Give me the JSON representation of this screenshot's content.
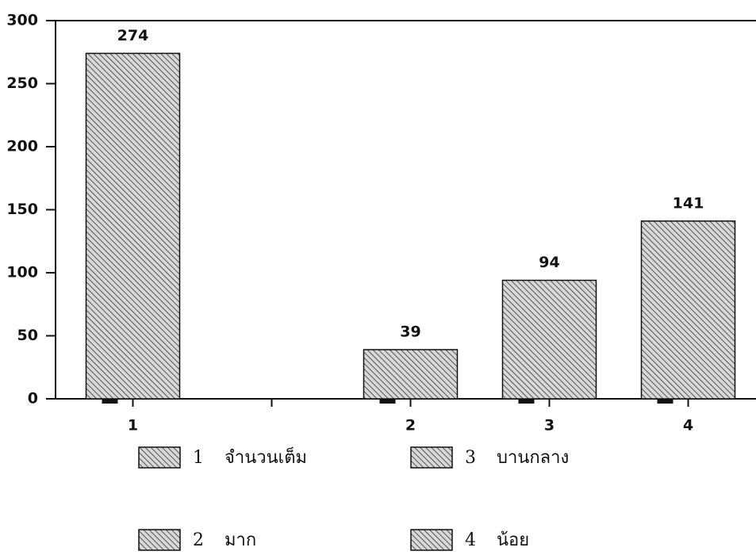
{
  "chart_data": {
    "type": "bar",
    "categories": [
      "1",
      null,
      "2",
      "3",
      "4"
    ],
    "values": [
      274,
      null,
      39,
      94,
      141
    ],
    "color": "#111111",
    "ylim": [
      0,
      300
    ],
    "yticks": [
      0,
      50,
      100,
      150,
      200,
      250,
      300
    ],
    "legend": [
      {
        "number": "1",
        "label": "จำนวนเต็ม"
      },
      {
        "number": "2",
        "label": "มาก"
      },
      {
        "number": "3",
        "label": "บานกลาง"
      },
      {
        "number": "4",
        "label": "น้อย"
      }
    ]
  }
}
